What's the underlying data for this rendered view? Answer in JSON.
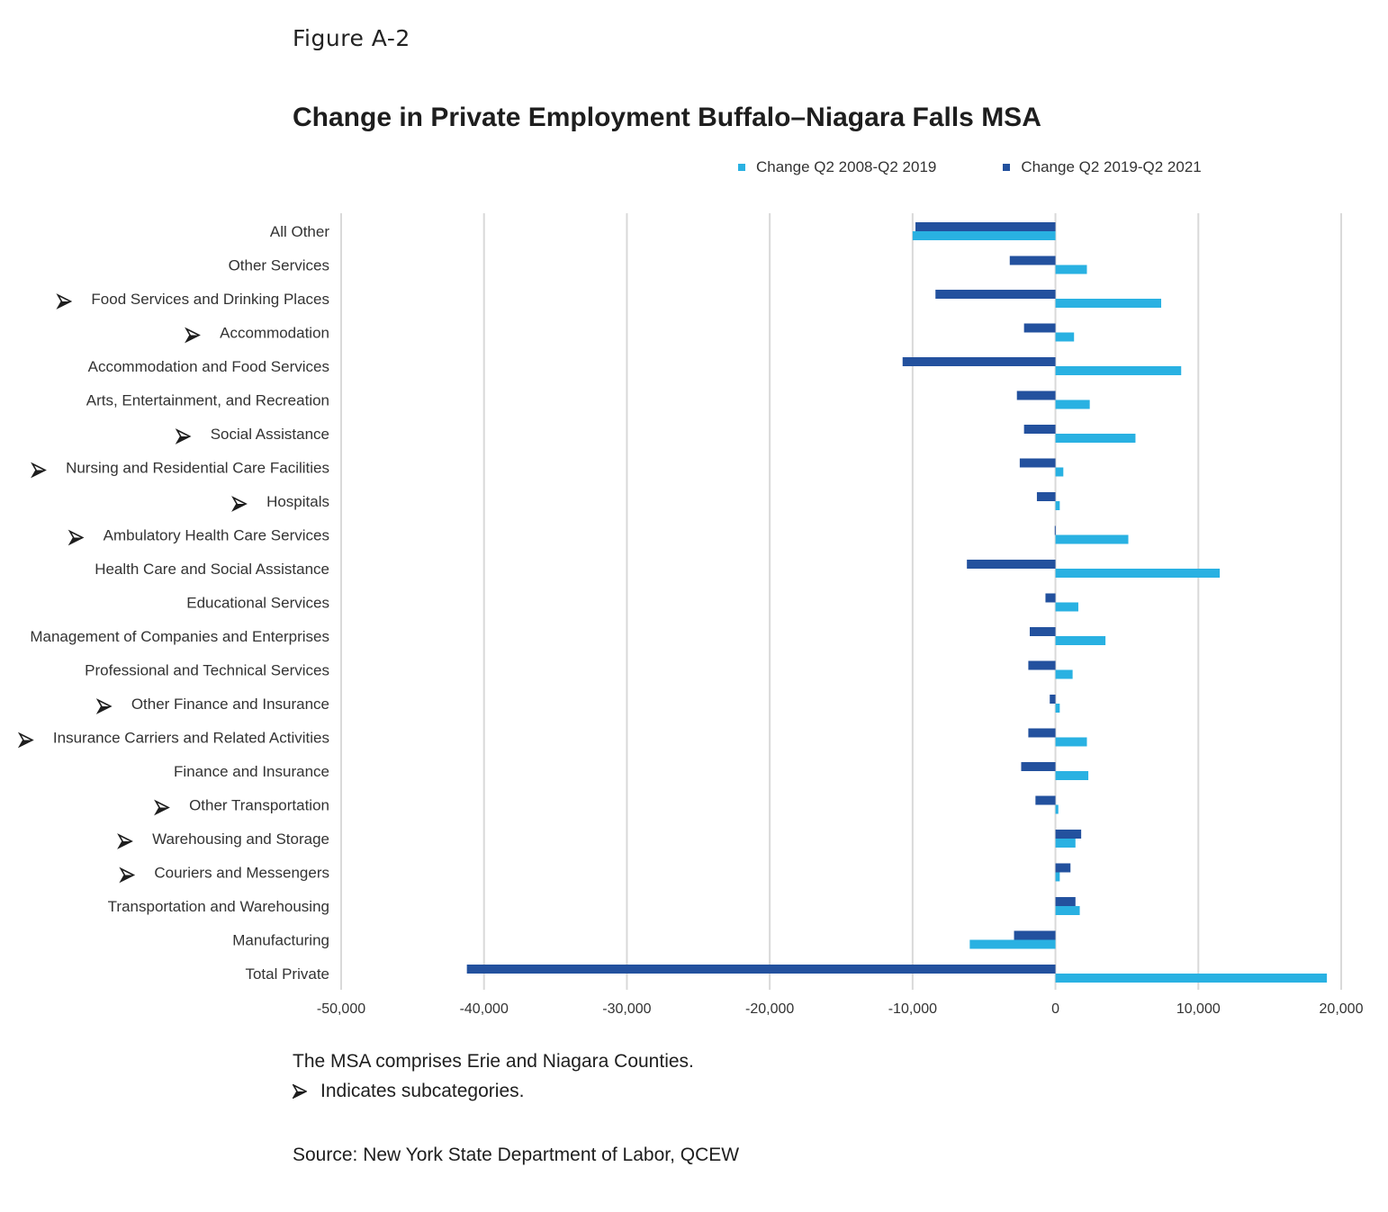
{
  "figure_label": "Figure A-2",
  "notes": {
    "msa": "The MSA comprises Erie and Niagara Counties.",
    "subcategory": "Indicates subcategories.",
    "subcategory_icon": "arrowhead-icon",
    "source": "Source: New York State Department of Labor, QCEW"
  },
  "colors": {
    "series1": "#29b1e2",
    "series2": "#23519e",
    "grid": "#d9d9d9",
    "text": "#333333"
  },
  "chart_data": {
    "type": "bar",
    "orientation": "horizontal",
    "title": "Change in Private Employment Buffalo–Niagara Falls MSA",
    "xlabel": "",
    "ylabel": "",
    "xlim": [
      -50000,
      20000
    ],
    "xticks": [
      -50000,
      -40000,
      -30000,
      -20000,
      -10000,
      0,
      10000,
      20000
    ],
    "xtick_labels": [
      "-50,000",
      "-40,000",
      "-30,000",
      "-20,000",
      "-10,000",
      "0",
      "10,000",
      "20,000"
    ],
    "grid": "vertical",
    "legend_position": "top-right",
    "categories": [
      "All Other",
      "Other Services",
      "Food Services and Drinking Places",
      "Accommodation",
      "Accommodation and Food Services",
      "Arts, Entertainment, and Recreation",
      "Social Assistance",
      "Nursing and Residential Care Facilities",
      "Hospitals",
      "Ambulatory Health Care Services",
      "Health Care and Social Assistance",
      "Educational Services",
      "Management of Companies and Enterprises",
      "Professional and Technical Services",
      "Other Finance and Insurance",
      "Insurance Carriers and Related Activities",
      "Finance and Insurance",
      "Other Transportation",
      "Warehousing and Storage",
      "Couriers and Messengers",
      "Transportation and Warehousing",
      "Manufacturing",
      "Total Private"
    ],
    "subcategory": [
      false,
      false,
      true,
      true,
      false,
      false,
      true,
      true,
      true,
      true,
      false,
      false,
      false,
      false,
      true,
      true,
      false,
      true,
      true,
      true,
      false,
      false,
      false
    ],
    "series": [
      {
        "name": "Change Q2 2008-Q2 2019",
        "color": "#29b1e2",
        "values": [
          -10000,
          2200,
          7400,
          1300,
          8800,
          2400,
          5600,
          550,
          300,
          5100,
          11500,
          1600,
          3500,
          1200,
          300,
          2200,
          2300,
          200,
          1400,
          300,
          1700,
          -6000,
          19000
        ]
      },
      {
        "name": "Change Q2 2019-Q2 2021",
        "color": "#23519e",
        "values": [
          -9800,
          -3200,
          -8400,
          -2200,
          -10700,
          -2700,
          -2200,
          -2500,
          -1300,
          -50,
          -6200,
          -700,
          -1800,
          -1900,
          -400,
          -1900,
          -2400,
          -1400,
          1800,
          1050,
          1400,
          -2900,
          -41200
        ]
      }
    ]
  }
}
